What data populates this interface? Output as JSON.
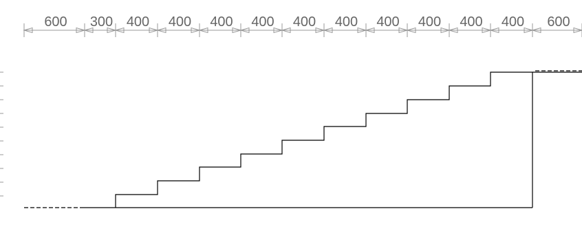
{
  "title": "",
  "dimensions": {
    "labels": [
      "600",
      "300",
      "400",
      "400",
      "400",
      "400",
      "400",
      "400",
      "400",
      "400",
      "400",
      "400",
      "600"
    ]
  },
  "colors": {
    "profile": "#000000",
    "dimension": "#999999",
    "dimension_text": "#666666"
  }
}
